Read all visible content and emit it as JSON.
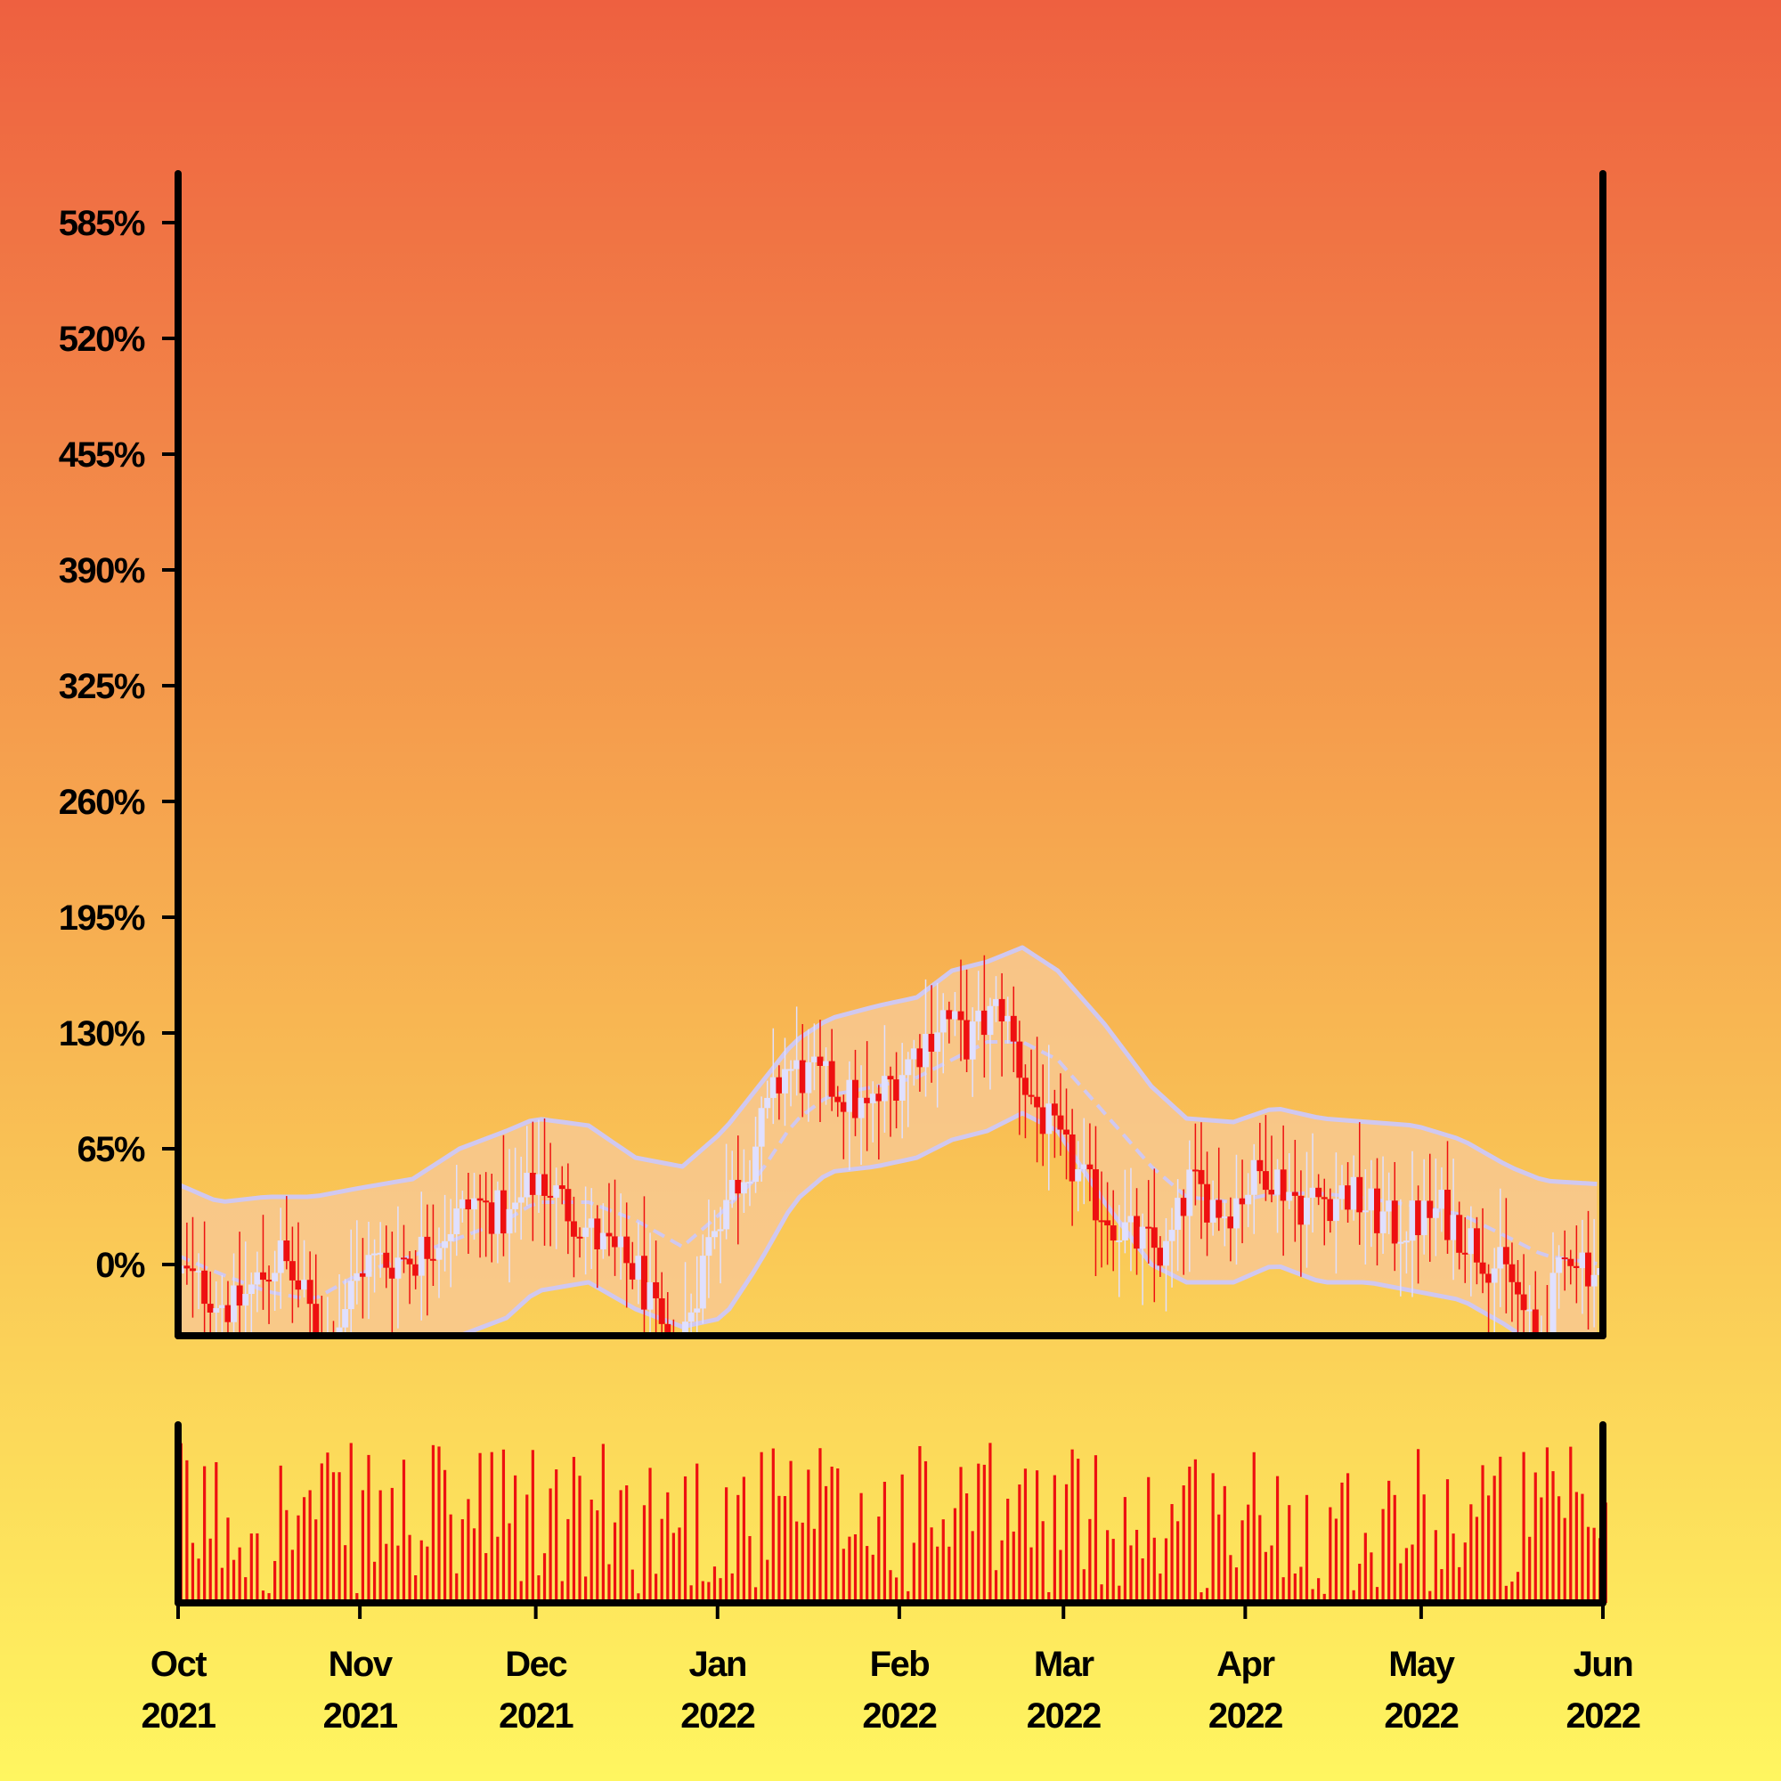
{
  "chart_data": {
    "type": "candlestick",
    "title": "",
    "xlabel": "",
    "ylabel": "",
    "ylim": [
      -90,
      620
    ],
    "yticks": [
      {
        "value": 0,
        "label": "0%"
      },
      {
        "value": 65,
        "label": "65%"
      },
      {
        "value": 130,
        "label": "130%"
      },
      {
        "value": 195,
        "label": "195%"
      },
      {
        "value": 260,
        "label": "260%"
      },
      {
        "value": 325,
        "label": "325%"
      },
      {
        "value": 390,
        "label": "390%"
      },
      {
        "value": 455,
        "label": "455%"
      },
      {
        "value": 520,
        "label": "520%"
      },
      {
        "value": 585,
        "label": "585%"
      }
    ],
    "xrange": [
      "2021-10-01",
      "2022-06-01"
    ],
    "xticks": [
      {
        "date": "2021-10-01",
        "month": "Oct",
        "year": "2021"
      },
      {
        "date": "2021-11-01",
        "month": "Nov",
        "year": "2021"
      },
      {
        "date": "2021-12-01",
        "month": "Dec",
        "year": "2021"
      },
      {
        "date": "2022-01-01",
        "month": "Jan",
        "year": "2022"
      },
      {
        "date": "2022-02-01",
        "month": "Feb",
        "year": "2022"
      },
      {
        "date": "2022-03-01",
        "month": "Mar",
        "year": "2022"
      },
      {
        "date": "2022-04-01",
        "month": "Apr",
        "year": "2022"
      },
      {
        "date": "2022-05-01",
        "month": "May",
        "year": "2022"
      },
      {
        "date": "2022-06-01",
        "month": "Jun",
        "year": "2022"
      }
    ],
    "price_path": [
      [
        "2021-10-01",
        -5
      ],
      [
        "2021-10-10",
        -25
      ],
      [
        "2021-10-18",
        5
      ],
      [
        "2021-10-26",
        -45
      ],
      [
        "2021-11-01",
        0
      ],
      [
        "2021-11-10",
        5
      ],
      [
        "2021-11-20",
        35
      ],
      [
        "2021-11-26",
        25
      ],
      [
        "2021-12-01",
        50
      ],
      [
        "2021-12-05",
        35
      ],
      [
        "2021-12-12",
        10
      ],
      [
        "2021-12-18",
        -5
      ],
      [
        "2021-12-24",
        -60
      ],
      [
        "2021-12-31",
        25
      ],
      [
        "2022-01-06",
        60
      ],
      [
        "2022-01-12",
        110
      ],
      [
        "2022-01-20",
        100
      ],
      [
        "2022-01-26",
        85
      ],
      [
        "2022-02-01",
        110
      ],
      [
        "2022-02-08",
        140
      ],
      [
        "2022-02-12",
        125
      ],
      [
        "2022-02-18",
        145
      ],
      [
        "2022-02-22",
        100
      ],
      [
        "2022-02-28",
        65
      ],
      [
        "2022-03-06",
        35
      ],
      [
        "2022-03-12",
        15
      ],
      [
        "2022-03-18",
        5
      ],
      [
        "2022-03-22",
        45
      ],
      [
        "2022-03-28",
        30
      ],
      [
        "2022-04-04",
        55
      ],
      [
        "2022-04-10",
        35
      ],
      [
        "2022-04-18",
        40
      ],
      [
        "2022-04-26",
        20
      ],
      [
        "2022-05-04",
        30
      ],
      [
        "2022-05-10",
        10
      ],
      [
        "2022-05-16",
        -10
      ],
      [
        "2022-05-20",
        -45
      ],
      [
        "2022-05-26",
        10
      ],
      [
        "2022-06-01",
        -10
      ]
    ],
    "bollinger": {
      "middle": [
        [
          "2021-10-01",
          5
        ],
        [
          "2021-10-08",
          -5
        ],
        [
          "2021-10-16",
          -15
        ],
        [
          "2021-10-24",
          -20
        ],
        [
          "2021-11-01",
          -5
        ],
        [
          "2021-11-10",
          5
        ],
        [
          "2021-11-18",
          15
        ],
        [
          "2021-11-26",
          25
        ],
        [
          "2021-12-01",
          35
        ],
        [
          "2021-12-10",
          35
        ],
        [
          "2021-12-18",
          25
        ],
        [
          "2021-12-26",
          10
        ],
        [
          "2022-01-02",
          30
        ],
        [
          "2022-01-08",
          50
        ],
        [
          "2022-01-14",
          80
        ],
        [
          "2022-01-20",
          95
        ],
        [
          "2022-01-28",
          100
        ],
        [
          "2022-02-04",
          105
        ],
        [
          "2022-02-10",
          115
        ],
        [
          "2022-02-16",
          125
        ],
        [
          "2022-02-22",
          125
        ],
        [
          "2022-02-28",
          115
        ],
        [
          "2022-03-08",
          85
        ],
        [
          "2022-03-16",
          55
        ],
        [
          "2022-03-22",
          38
        ],
        [
          "2022-03-30",
          35
        ],
        [
          "2022-04-06",
          40
        ],
        [
          "2022-04-14",
          40
        ],
        [
          "2022-04-22",
          37
        ],
        [
          "2022-04-30",
          33
        ],
        [
          "2022-05-08",
          28
        ],
        [
          "2022-05-16",
          15
        ],
        [
          "2022-05-22",
          5
        ],
        [
          "2022-06-01",
          0
        ]
      ],
      "upper": [
        [
          "2021-10-01",
          45
        ],
        [
          "2021-10-08",
          35
        ],
        [
          "2021-10-16",
          38
        ],
        [
          "2021-10-24",
          38
        ],
        [
          "2021-11-01",
          43
        ],
        [
          "2021-11-10",
          48
        ],
        [
          "2021-11-18",
          65
        ],
        [
          "2021-11-26",
          75
        ],
        [
          "2021-12-01",
          82
        ],
        [
          "2021-12-10",
          78
        ],
        [
          "2021-12-18",
          60
        ],
        [
          "2021-12-26",
          55
        ],
        [
          "2022-01-02",
          75
        ],
        [
          "2022-01-08",
          100
        ],
        [
          "2022-01-14",
          125
        ],
        [
          "2022-01-20",
          138
        ],
        [
          "2022-01-28",
          145
        ],
        [
          "2022-02-04",
          150
        ],
        [
          "2022-02-10",
          165
        ],
        [
          "2022-02-16",
          170
        ],
        [
          "2022-02-22",
          178
        ],
        [
          "2022-02-28",
          165
        ],
        [
          "2022-03-08",
          135
        ],
        [
          "2022-03-16",
          100
        ],
        [
          "2022-03-22",
          82
        ],
        [
          "2022-03-30",
          80
        ],
        [
          "2022-04-06",
          88
        ],
        [
          "2022-04-14",
          82
        ],
        [
          "2022-04-22",
          80
        ],
        [
          "2022-04-30",
          78
        ],
        [
          "2022-05-08",
          70
        ],
        [
          "2022-05-16",
          55
        ],
        [
          "2022-05-22",
          47
        ],
        [
          "2022-06-01",
          45
        ]
      ],
      "lower": [
        [
          "2021-10-01",
          -50
        ],
        [
          "2021-10-08",
          -55
        ],
        [
          "2021-10-16",
          -60
        ],
        [
          "2021-10-24",
          -70
        ],
        [
          "2021-11-01",
          -80
        ],
        [
          "2021-11-10",
          -85
        ],
        [
          "2021-11-18",
          -40
        ],
        [
          "2021-11-26",
          -30
        ],
        [
          "2021-12-01",
          -15
        ],
        [
          "2021-12-10",
          -10
        ],
        [
          "2021-12-18",
          -25
        ],
        [
          "2021-12-26",
          -35
        ],
        [
          "2022-01-02",
          -30
        ],
        [
          "2022-01-08",
          0
        ],
        [
          "2022-01-14",
          35
        ],
        [
          "2022-01-20",
          52
        ],
        [
          "2022-01-28",
          55
        ],
        [
          "2022-02-04",
          60
        ],
        [
          "2022-02-10",
          70
        ],
        [
          "2022-02-16",
          75
        ],
        [
          "2022-02-22",
          85
        ],
        [
          "2022-02-28",
          75
        ],
        [
          "2022-03-08",
          35
        ],
        [
          "2022-03-16",
          0
        ],
        [
          "2022-03-22",
          -10
        ],
        [
          "2022-03-30",
          -10
        ],
        [
          "2022-04-06",
          0
        ],
        [
          "2022-04-14",
          -10
        ],
        [
          "2022-04-22",
          -10
        ],
        [
          "2022-04-30",
          -15
        ],
        [
          "2022-05-08",
          -20
        ],
        [
          "2022-05-16",
          -35
        ],
        [
          "2022-05-22",
          -50
        ],
        [
          "2022-06-01",
          -55
        ]
      ]
    },
    "colors": {
      "background_top": "#ee6040",
      "background_bottom": "#fff660",
      "band_fill": "#f8c890",
      "band_line": "#d0c8f0",
      "candle_up": "#e0e0ff",
      "candle_down": "#ee1010",
      "volume": "#ee1010",
      "axis": "#000000"
    },
    "grid": false,
    "legend": "none"
  }
}
